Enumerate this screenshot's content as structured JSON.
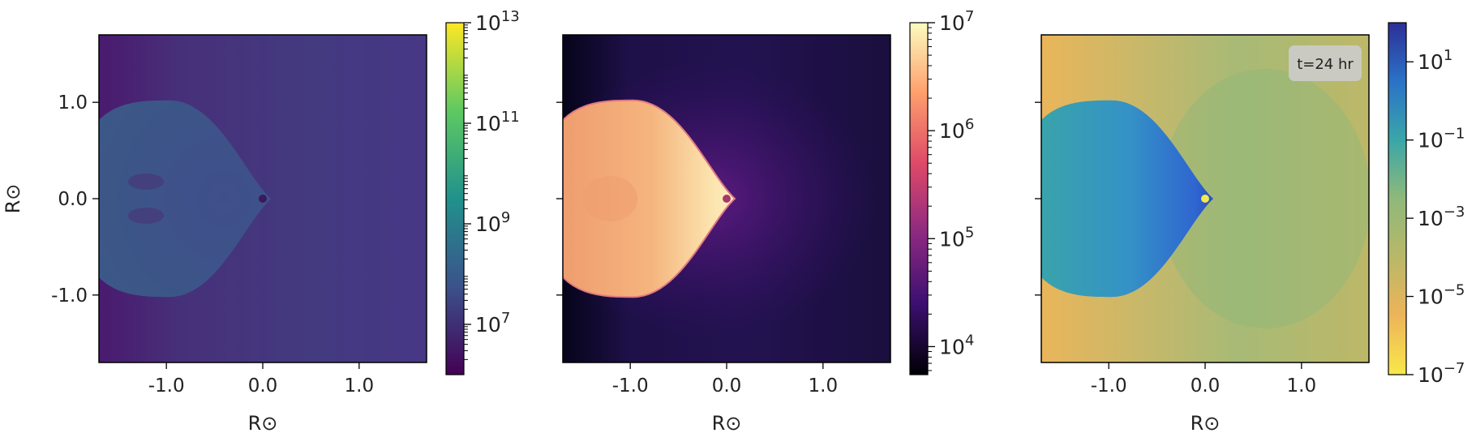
{
  "annotation": "t=24 hr",
  "chart_data": [
    {
      "type": "heatmap",
      "quantity": "density",
      "xlabel": "R⊙",
      "ylabel": "R⊙",
      "xlim": [
        -1.7,
        1.7
      ],
      "ylim": [
        -1.7,
        1.7
      ],
      "xticks": [
        -1.0,
        0.0,
        1.0
      ],
      "xtick_labels": [
        "-1.0",
        "0.0",
        "1.0"
      ],
      "yticks": [
        1.0,
        0.0,
        -1.0
      ],
      "ytick_labels": [
        "1.0",
        "0.0",
        "-1.0"
      ],
      "colorbar": {
        "scale": "log",
        "colormap": "viridis",
        "range": [
          1000000,
          10000000000000
        ],
        "ticks": [
          10000000,
          1000000000,
          100000000000,
          10000000000000
        ],
        "tick_base": [
          "10",
          "10",
          "10",
          "10"
        ],
        "tick_exp": [
          "7",
          "9",
          "11",
          "13"
        ],
        "colors": [
          "#440154",
          "#3b528b",
          "#21918c",
          "#5ec962",
          "#fde725"
        ]
      },
      "feature": {
        "shape": "teardrop",
        "apex_x": 0.0,
        "apex_y": 0.0,
        "max_half_height": 1.02
      },
      "background_color": "#45327a",
      "feature_color": "#3c5c8c"
    },
    {
      "type": "heatmap",
      "quantity": "temperature",
      "xlabel": "R⊙",
      "ylabel": "",
      "xlim": [
        -1.7,
        1.7
      ],
      "ylim": [
        -1.7,
        1.7
      ],
      "xticks": [
        -1.0,
        0.0,
        1.0
      ],
      "xtick_labels": [
        "-1.0",
        "0.0",
        "1.0"
      ],
      "colorbar": {
        "scale": "log",
        "colormap": "magma",
        "range": [
          5500,
          10000000
        ],
        "ticks": [
          10000,
          100000,
          1000000,
          10000000
        ],
        "tick_base": [
          "10",
          "10",
          "10",
          "10"
        ],
        "tick_exp": [
          "4",
          "5",
          "6",
          "7"
        ],
        "colors": [
          "#000004",
          "#3b0f70",
          "#8c2981",
          "#de4968",
          "#fe9f6d",
          "#fcfdbf"
        ]
      },
      "feature": {
        "shape": "teardrop",
        "apex_x": 0.0,
        "apex_y": 0.0,
        "max_half_height": 1.02
      },
      "background_color": "#1c1040",
      "feature_color": "#f2a070"
    },
    {
      "type": "heatmap",
      "quantity": "ratio",
      "xlabel": "R⊙",
      "ylabel": "",
      "xlim": [
        -1.7,
        1.7
      ],
      "ylim": [
        -1.7,
        1.7
      ],
      "xticks": [
        -1.0,
        0.0,
        1.0
      ],
      "xtick_labels": [
        "-1.0",
        "0.0",
        "1.0"
      ],
      "colorbar": {
        "scale": "log",
        "colormap": "cividis-like (reversed)",
        "range": [
          1e-07,
          100
        ],
        "ticks": [
          10,
          0.1,
          0.001,
          1e-05,
          1e-07
        ],
        "tick_base": [
          "10",
          "10",
          "10",
          "10",
          "10"
        ],
        "tick_exp": [
          "1",
          "−1",
          "−3",
          "−5",
          "−7"
        ],
        "colors": [
          "#f8e84a",
          "#eeb45a",
          "#b9b868",
          "#8fb97a",
          "#3aa6a8",
          "#2b72c8",
          "#2c2f96"
        ]
      },
      "feature": {
        "shape": "teardrop",
        "apex_x": 0.0,
        "apex_y": 0.0,
        "max_half_height": 1.02
      },
      "background_color": "#b9b868",
      "feature_color": "#3aa0b8"
    }
  ]
}
